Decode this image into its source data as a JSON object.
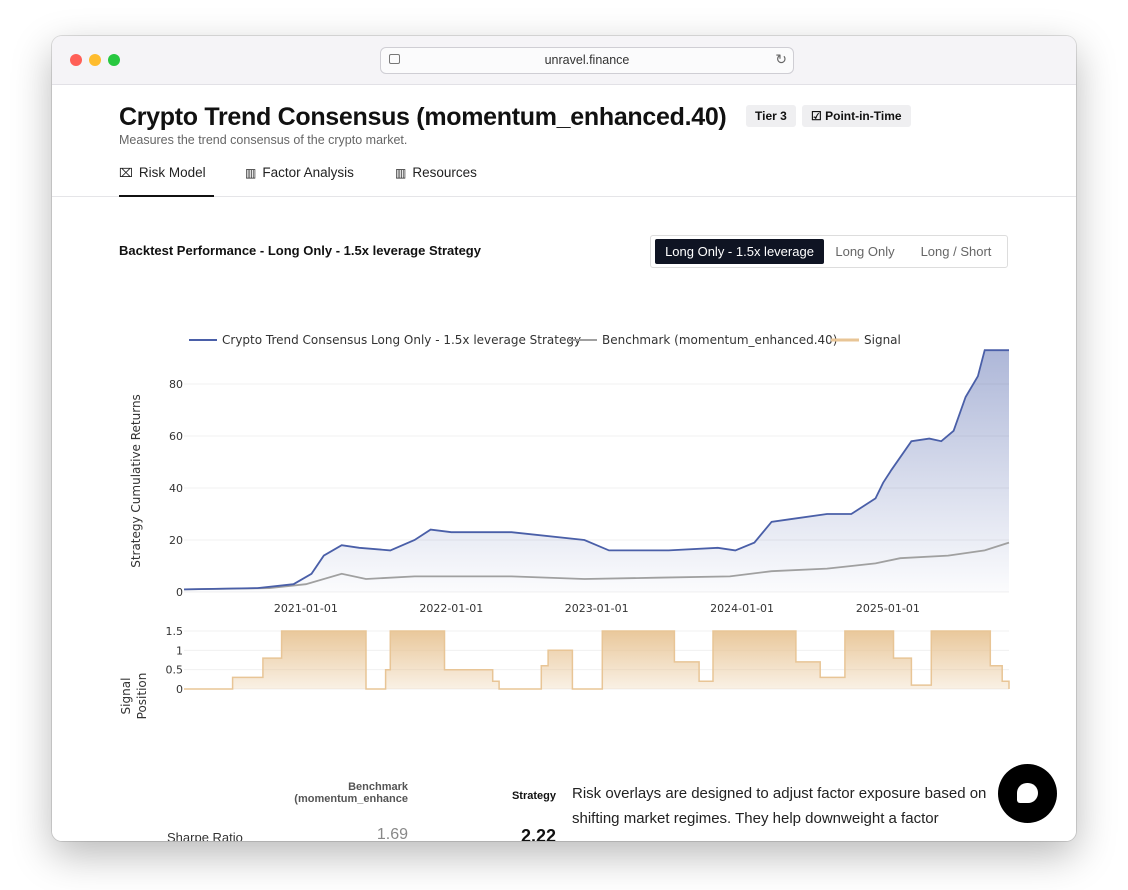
{
  "browser": {
    "url": "unravel.finance"
  },
  "header": {
    "title": "Crypto Trend Consensus (momentum_enhanced.40)",
    "badges": [
      "Tier 3",
      "Point-in-Time"
    ],
    "subtitle": "Measures the trend consensus of the crypto market."
  },
  "tabs": [
    {
      "label": "Risk Model",
      "icon": "risk-model-icon",
      "active": true
    },
    {
      "label": "Factor Analysis",
      "icon": "bar-chart-icon",
      "active": false
    },
    {
      "label": "Resources",
      "icon": "bar-chart-icon",
      "active": false
    }
  ],
  "backtest": {
    "title": "Backtest Performance - Long Only - 1.5x leverage Strategy",
    "options": [
      "Long Only - 1.5x leverage",
      "Long Only",
      "Long / Short"
    ],
    "selected": "Long Only - 1.5x leverage"
  },
  "colors": {
    "strategy": "#4a5fa8",
    "benchmark": "#a0a0a0",
    "signal": "#e8c596",
    "dark": "#0f1423"
  },
  "chart_data": [
    {
      "type": "line",
      "ylabel": "Strategy Cumulative Returns",
      "xlabel": "",
      "x_ticks": [
        "2021-01-01",
        "2022-01-01",
        "2023-01-01",
        "2024-01-01",
        "2025-01-01"
      ],
      "y_ticks": [
        0,
        20,
        40,
        60,
        80
      ],
      "xlim": [
        "2020-03-01",
        "2025-11-01"
      ],
      "ylim": [
        0,
        95
      ],
      "legend": "top",
      "series": [
        {
          "name": "Crypto Trend Consensus Long Only - 1.5x leverage Strategy",
          "x": [
            "2020-03-01",
            "2020-09-01",
            "2020-12-01",
            "2021-01-15",
            "2021-02-15",
            "2021-04-01",
            "2021-05-15",
            "2021-08-01",
            "2021-10-01",
            "2021-11-10",
            "2022-01-01",
            "2022-06-01",
            "2022-12-01",
            "2023-02-01",
            "2023-07-01",
            "2023-11-01",
            "2023-12-15",
            "2024-02-01",
            "2024-03-15",
            "2024-05-01",
            "2024-08-01",
            "2024-10-01",
            "2024-12-01",
            "2024-12-20",
            "2025-01-10",
            "2025-03-01",
            "2025-04-15",
            "2025-05-15",
            "2025-06-15",
            "2025-07-15",
            "2025-08-15",
            "2025-09-01",
            "2025-11-01"
          ],
          "values": [
            1,
            1.5,
            3,
            7,
            14,
            18,
            17,
            16,
            20,
            24,
            23,
            23,
            20,
            16,
            16,
            17,
            16,
            19,
            27,
            28,
            30,
            30,
            36,
            42,
            47,
            58,
            59,
            58,
            62,
            75,
            83,
            93,
            93
          ]
        },
        {
          "name": "Benchmark (momentum_enhanced.40)",
          "x": [
            "2020-03-01",
            "2020-10-01",
            "2021-01-01",
            "2021-04-01",
            "2021-06-01",
            "2021-10-01",
            "2022-06-01",
            "2022-12-01",
            "2023-06-01",
            "2023-12-01",
            "2024-03-15",
            "2024-08-01",
            "2024-12-01",
            "2025-02-01",
            "2025-06-01",
            "2025-09-01",
            "2025-11-01"
          ],
          "values": [
            1,
            1.5,
            3,
            7,
            5,
            6,
            6,
            5,
            5.5,
            6,
            8,
            9,
            11,
            13,
            14,
            16,
            19
          ]
        }
      ]
    },
    {
      "type": "area",
      "ylabel": "Signal Position",
      "y_ticks": [
        0,
        0.5,
        1,
        1.5
      ],
      "ylim": [
        0,
        1.5
      ],
      "series": [
        {
          "name": "Signal",
          "x": [
            "2020-03-01",
            "2020-07-01",
            "2020-09-15",
            "2020-11-01",
            "2021-01-01",
            "2021-05-15",
            "2021-06-01",
            "2021-07-20",
            "2021-08-01",
            "2021-11-20",
            "2021-12-15",
            "2022-04-15",
            "2022-05-01",
            "2022-08-15",
            "2022-09-01",
            "2022-11-01",
            "2023-01-15",
            "2023-06-15",
            "2023-07-15",
            "2023-09-15",
            "2023-10-20",
            "2024-04-15",
            "2024-05-15",
            "2024-07-15",
            "2024-09-15",
            "2024-12-20",
            "2025-01-15",
            "2025-03-01",
            "2025-04-20",
            "2025-08-15",
            "2025-09-15",
            "2025-10-15",
            "2025-11-01"
          ],
          "values": [
            0,
            0.3,
            0.8,
            1.5,
            1.5,
            1.5,
            0,
            0.5,
            1.5,
            1.5,
            0.5,
            0.2,
            0,
            0.6,
            1.0,
            0,
            1.5,
            1.5,
            0.7,
            0.2,
            1.5,
            1.5,
            0.7,
            0.3,
            1.5,
            1.5,
            0.8,
            0.1,
            1.5,
            1.5,
            0.6,
            0.2,
            0
          ]
        }
      ]
    }
  ],
  "stats": {
    "head_benchmark": [
      "Benchmark",
      "(momentum_enhance"
    ],
    "head_strategy": "Strategy",
    "rows": [
      {
        "label": "Sharpe Ratio",
        "benchmark": "1.69",
        "strategy": "2.22"
      }
    ]
  },
  "description": "Risk overlays are designed to adjust factor exposure based on shifting market regimes. They help downweight a factor"
}
